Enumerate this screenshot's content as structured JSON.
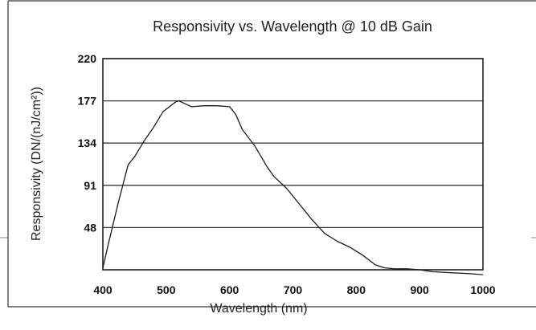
{
  "chart_data": {
    "type": "line",
    "title": "Responsivity vs. Wavelength @ 10 dB Gain",
    "xlabel": "Wavelength (nm)",
    "ylabel": "Responsivity (DN/(nJ/cm²))",
    "xlim": [
      400,
      1000
    ],
    "ylim": [
      5,
      220
    ],
    "xticks": [
      400,
      500,
      600,
      700,
      800,
      900,
      1000
    ],
    "yticks": [
      48,
      91,
      134,
      177,
      220
    ],
    "grid": "horizontal",
    "legend": "none",
    "series": [
      {
        "x": [
          400,
          410,
          425,
          440,
          450,
          465,
          480,
          495,
          505,
          515,
          520,
          530,
          540,
          560,
          580,
          600,
          610,
          620,
          640,
          660,
          670,
          690,
          710,
          730,
          750,
          770,
          790,
          810,
          830,
          845,
          860,
          880,
          900,
          920,
          950,
          980,
          1000
        ],
        "y": [
          7,
          35,
          75,
          112,
          120,
          136,
          150,
          166,
          171,
          176,
          177,
          174,
          171,
          172,
          172,
          171,
          163,
          148,
          131,
          109,
          100,
          88,
          72,
          56,
          42,
          34,
          28,
          20,
          10,
          7,
          6,
          6,
          5,
          3,
          2,
          1,
          0
        ],
        "color": "#1a1a1a"
      }
    ]
  }
}
